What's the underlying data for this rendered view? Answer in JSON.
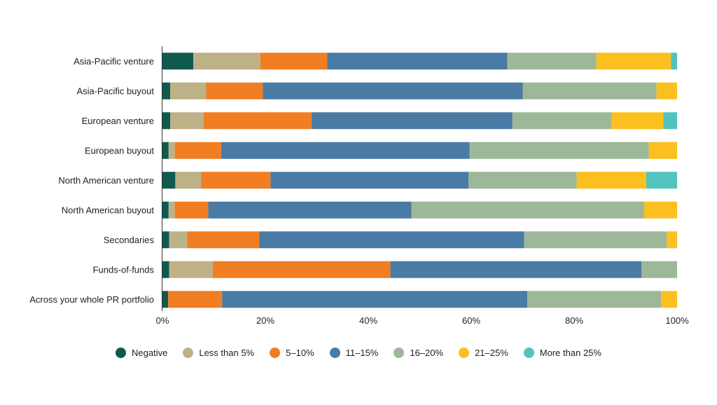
{
  "chart_data": {
    "type": "bar",
    "orientation": "horizontal",
    "stacked": true,
    "categories": [
      "Asia-Pacific venture",
      "Asia-Pacific buyout",
      "European venture",
      "European buyout",
      "North American venture",
      "North American buyout",
      "Secondaries",
      "Funds-of-funds",
      "Across your whole PR portfolio"
    ],
    "series": [
      {
        "name": "Negative",
        "color": "#0e5a4f",
        "values": [
          6,
          1.5,
          1.5,
          1.2,
          2.5,
          1.2,
          1.3,
          1.3,
          1.1
        ]
      },
      {
        "name": "Less than 5%",
        "color": "#bdb187",
        "values": [
          13,
          7,
          6.5,
          1.2,
          5,
          1.2,
          3.5,
          8.5,
          0
        ]
      },
      {
        "name": "5–10%",
        "color": "#f17e23",
        "values": [
          13,
          11,
          21,
          9,
          13.5,
          6.5,
          14,
          34.5,
          10.5
        ]
      },
      {
        "name": "11–15%",
        "color": "#4a7ba5",
        "values": [
          35,
          50.5,
          39,
          48.3,
          38.5,
          39.5,
          51.5,
          48.8,
          59.3
        ]
      },
      {
        "name": "16–20%",
        "color": "#9db898",
        "values": [
          17.3,
          26,
          19.3,
          34.8,
          21,
          45.2,
          27.7,
          6.9,
          26
        ]
      },
      {
        "name": "21–25%",
        "color": "#fbc020",
        "values": [
          14.5,
          4,
          10,
          5.5,
          13.5,
          6.4,
          2,
          0,
          3.1
        ]
      },
      {
        "name": "More than 25%",
        "color": "#52c3bf",
        "values": [
          1.2,
          0,
          2.7,
          0,
          6,
          0,
          0,
          0,
          0
        ]
      }
    ],
    "xlim": [
      0,
      100
    ],
    "xticks": [
      "0%",
      "20%",
      "40%",
      "60%",
      "80%",
      "100%"
    ],
    "xtick_values": [
      0,
      20,
      40,
      60,
      80,
      100
    ],
    "title": "",
    "xlabel": "",
    "ylabel": "",
    "legend_position": "bottom-center"
  }
}
